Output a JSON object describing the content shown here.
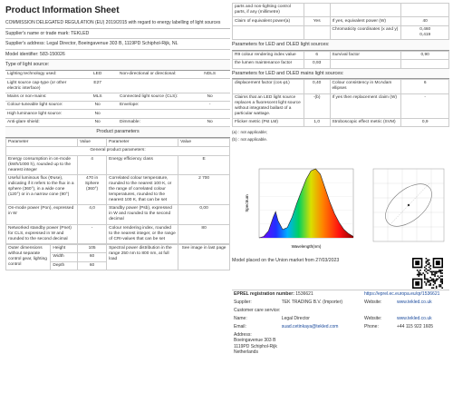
{
  "header": {
    "title": "Product Information Sheet",
    "regulation": "COMMISSION DELEGATED REGULATION (EU) 2019/2015 with regard to energy labelling of light sources",
    "supplier_name": "Supplier's name or trade mark:  TEKLED",
    "supplier_address": "Supplier's address:  Legal Director, Boeingavenue 303 B, 1119PD Schiphol-Rijk, NL",
    "model_identifier": "Model identifier:  583-150026",
    "type_heading": "Type of light source:"
  },
  "type_rows": [
    [
      "Lighting technology used:",
      "LED",
      "Non-directional or directional:",
      "NDLS"
    ],
    [
      "Light source cap-type (or other electric interface)",
      "E27",
      "",
      ""
    ],
    [
      "Mains or non-mains:",
      "MLS",
      "Connected light source (CLS):",
      "No"
    ],
    [
      "Colour-tuneable light source:",
      "No",
      "Envelope:",
      "-"
    ],
    [
      "High luminance light source:",
      "No",
      "",
      ""
    ],
    [
      "Anti-glare shield:",
      "No",
      "Dimmable:",
      "No"
    ]
  ],
  "params_heading": "Product parameters",
  "params_header": [
    "Parameter",
    "Value",
    "Parameter",
    "Value"
  ],
  "general_heading": "General product parameters:",
  "general_rows": [
    [
      "Energy consumption in on-mode (kWh/1000 h), rounded up to the nearest integer",
      "4",
      "Energy efficiency class",
      "E"
    ],
    [
      "Useful luminous flux (Φuse), indicating if it refers to the flux in a sphere (360°), in a wide cone (120°) or in a narrow cone (90°)",
      "470 in Sphere (360°)",
      "Correlated colour temperature, rounded to the nearest 100 K, or the range of correlated colour temperatures, rounded to the nearest 100 K, that can be set",
      "2 700"
    ],
    [
      "On-mode power (Pon), expressed in W",
      "4,0",
      "Standby power (Psb), expressed in W and rounded to the second decimal",
      "0,00"
    ],
    [
      "Networked standby power (Pnet) for CLS, expressed in W and rounded to the second decimal",
      "-",
      "Colour rendering index, rounded to the nearest integer, or the range of CRI-values that can be set",
      "80"
    ]
  ],
  "dimensions": {
    "label": "Outer dimensions without separate control gear, lighting control",
    "height_label": "Height",
    "height": "105",
    "width_label": "Width",
    "width": "60",
    "depth_label": "Depth",
    "depth": "60",
    "spd_label": "Spectral power distribution in the range 250 nm to 800 nm, at full load",
    "spd_value": "See image in last page"
  },
  "right_top": {
    "cont_text": "parts and non-lighting control parts, if any (millimetre)",
    "rows": [
      [
        "Claim of equivalent power(a)",
        "Yes",
        "If yes, equivalent power (W)",
        "40"
      ],
      [
        "",
        "",
        "Chromaticity coordinates (x and y)",
        "0,460\n0,419"
      ]
    ],
    "led_heading": "Parameters for LED and OLED light sources:",
    "led_rows": [
      [
        "R9 colour rendering index value",
        "6",
        "Survival factor",
        "0,90"
      ],
      [
        "the lumen maintenance factor",
        "0,93",
        "",
        ""
      ]
    ],
    "mains_heading": "Parameters for LED and OLED mains light sources:",
    "mains_rows": [
      [
        "displacement factor (cos φ1)",
        "0,40",
        "Colour consistency in McAdam ellipses",
        "6"
      ],
      [
        "Claims that an LED light source replaces a fluorescent light source without integrated ballast of a particular wattage.",
        "-(b)",
        "If yes then replacement claim (W)",
        "-"
      ],
      [
        "Flicker metric (Pst LM)",
        "1,0",
        "Stroboscopic effect metric (SVM)",
        "0,9"
      ]
    ],
    "note_a": "(a)  : not applicable;",
    "note_b": "(b)  : not applicable."
  },
  "chart_data": {
    "type": "line",
    "xlabel": "Wavelength(nm)",
    "ylabel": "Spectrum",
    "x": [
      380,
      400,
      420,
      440,
      450,
      460,
      480,
      500,
      520,
      540,
      560,
      580,
      600,
      620,
      640,
      660,
      680,
      700,
      720,
      740,
      760,
      780
    ],
    "values": [
      0.0,
      0.02,
      0.1,
      0.3,
      0.38,
      0.25,
      0.12,
      0.15,
      0.3,
      0.5,
      0.68,
      0.85,
      0.97,
      1.0,
      0.92,
      0.72,
      0.52,
      0.35,
      0.22,
      0.12,
      0.06,
      0.02
    ],
    "xlim": [
      380,
      780
    ],
    "ylim": [
      0,
      1.0
    ]
  },
  "bottom": {
    "placed": "Model placed on the Union market from 27/03/2023",
    "eprel_label": "EPREL registration number:",
    "eprel_value": "1536621",
    "eprel_link": "https://eprel.ec.europa.eu/qr/1536621",
    "supplier_label": "Supplier:",
    "supplier_value": "TEK TRADING B.V. (Importer)",
    "website_label": "Website:",
    "website_value": "www.tekled.co.uk",
    "care_label": "Customer care service:",
    "name_label": "Name:",
    "name_value": "Legal Director",
    "website2_label": "Website:",
    "website2_value": "www.tekled.co.uk",
    "email_label": "Email:",
    "email_value": "suad.cetinkaya@tekled.com",
    "phone_label": "Phone:",
    "phone_value": "+44 115 922 1605",
    "address_label": "Address:",
    "address_lines": [
      "Boeingavenue 303 B",
      "1119PD  Schiphol-Rijk",
      "Netherlands"
    ]
  },
  "colors": {
    "curve": "#222222",
    "ellipse_box": "#999999",
    "link": "#1a4a9c"
  }
}
